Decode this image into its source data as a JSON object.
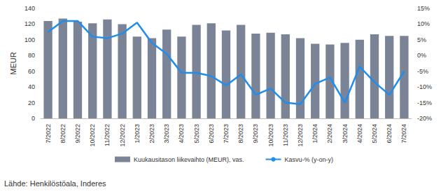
{
  "chart_data": {
    "type": "bar",
    "y_label": "MEUR",
    "annotations": [
      "Lähde: Henkilöstöala, Inderes"
    ],
    "categories": [
      "7/2022",
      "8/2022",
      "9/2022",
      "10/2022",
      "11/2022",
      "12/2022",
      "1/2023",
      "2/2023",
      "3/2023",
      "4/2023",
      "5/2023",
      "6/2023",
      "7/2023",
      "8/2023",
      "9/2023",
      "10/2023",
      "11/2023",
      "12/2023",
      "1/2024",
      "2/2024",
      "3/2024",
      "4/2024",
      "5/2024",
      "6/2024",
      "7/2024"
    ],
    "series": [
      {
        "name": "Kuukausitason liikevaihto (MEUR), vas.",
        "type": "bar",
        "color": "#7b8396",
        "values": [
          124,
          127,
          123,
          121,
          126,
          120,
          104,
          102,
          113,
          104,
          119,
          121,
          112,
          119,
          108,
          109,
          107,
          102,
          95,
          94,
          96,
          100,
          107,
          105,
          105
        ]
      },
      {
        "name": "Kasvu-% (y-on-y)",
        "type": "line",
        "axis": "y2",
        "color": "#1f8ded",
        "line_style": "solid",
        "values": [
          7.5,
          11,
          11,
          6,
          5.5,
          7,
          10.5,
          4,
          0.5,
          -5.5,
          -5.5,
          -6.5,
          -9.5,
          -6,
          -12.5,
          -10.5,
          -15,
          -15.5,
          -9,
          -7,
          -15,
          -3.5,
          -8.5,
          -12.5,
          -5
        ]
      }
    ],
    "ylim": [
      0,
      140
    ],
    "yticks": [
      0,
      20,
      40,
      60,
      80,
      100,
      120,
      140
    ],
    "y2lim": [
      -20,
      15
    ],
    "y2ticks": [
      {
        "value": -20,
        "label": "-20%"
      },
      {
        "value": -15,
        "label": "-15%"
      },
      {
        "value": -10,
        "label": "-10%"
      },
      {
        "value": -5,
        "label": "-5%"
      },
      {
        "value": 0,
        "label": "0%"
      },
      {
        "value": 5,
        "label": "5%"
      },
      {
        "value": 10,
        "label": "10%"
      },
      {
        "value": 15,
        "label": "15%"
      }
    ],
    "grid": false,
    "legend": "bottom"
  }
}
